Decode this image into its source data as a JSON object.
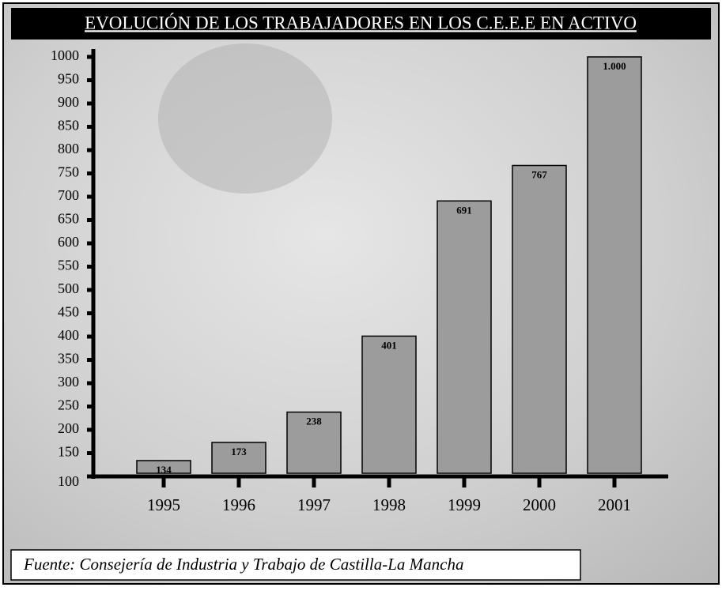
{
  "chart_data": {
    "type": "bar",
    "title": "EVOLUCIÓN DE LOS TRABAJADORES EN LOS C.E.E.E EN ACTIVO",
    "categories": [
      "1995",
      "1996",
      "1997",
      "1998",
      "1999",
      "2000",
      "2001"
    ],
    "values": [
      134,
      173,
      238,
      401,
      691,
      767,
      1000
    ],
    "value_labels": [
      "134",
      "173",
      "238",
      "401",
      "691",
      "767",
      "1.000"
    ],
    "color": "#9c9c9c",
    "ylim": [
      100,
      1000
    ],
    "yticks": [
      100,
      150,
      200,
      250,
      300,
      350,
      400,
      450,
      500,
      550,
      600,
      650,
      700,
      750,
      800,
      850,
      900,
      950,
      1000
    ],
    "source": "Fuente: Consejería de Industria y Trabajo de Castilla-La Mancha"
  }
}
